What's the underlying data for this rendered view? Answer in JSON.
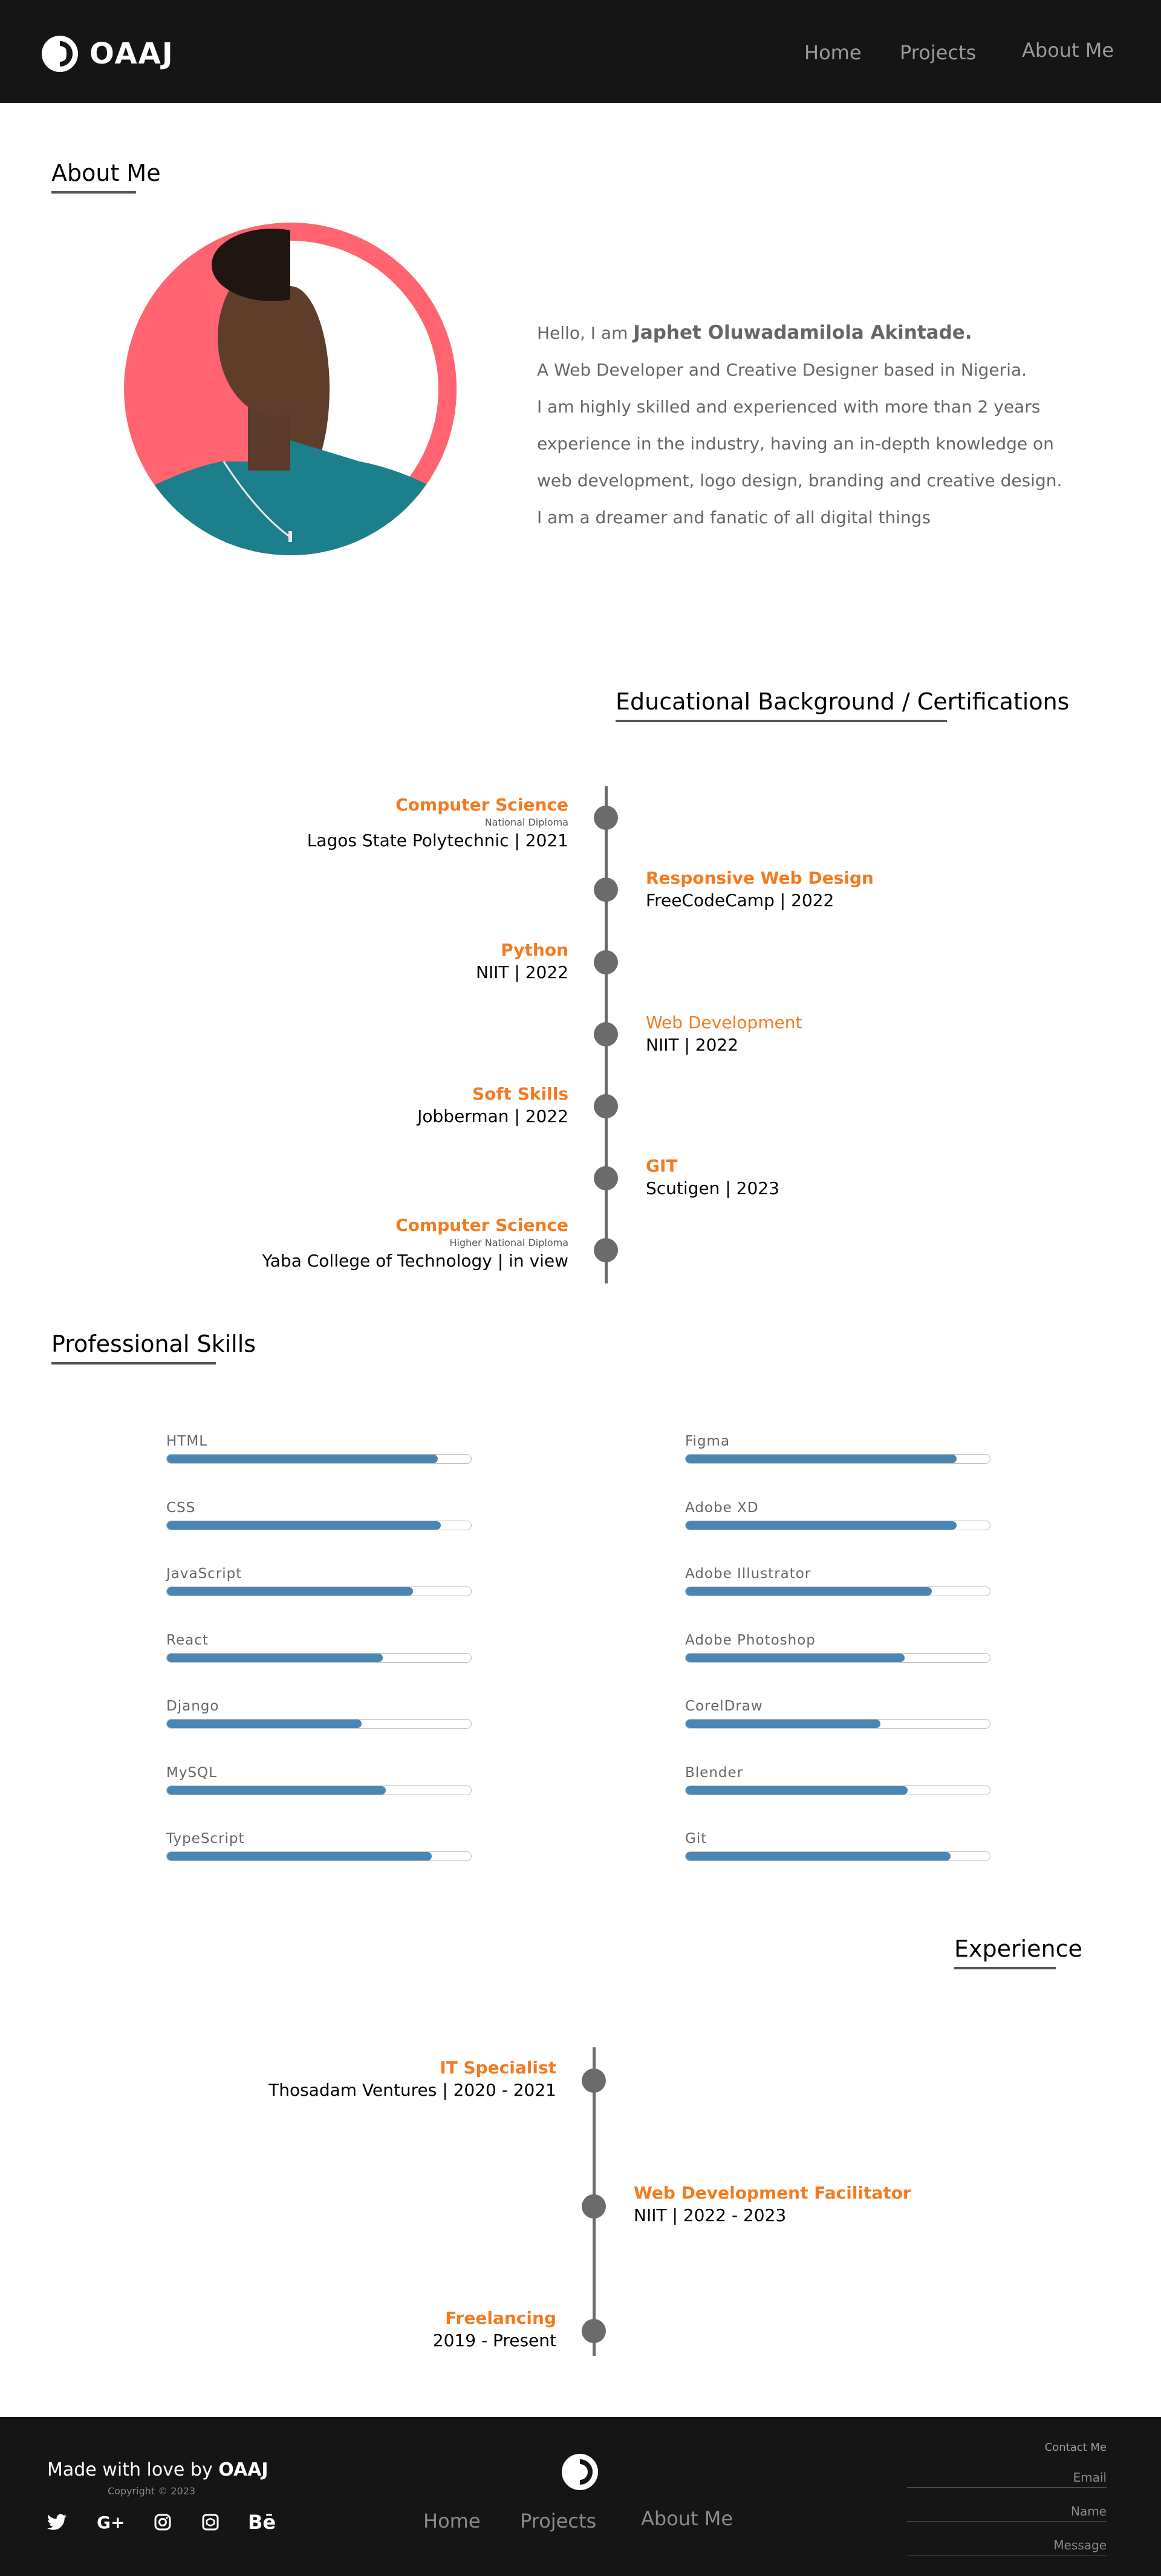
{
  "brand": {
    "name": "OAAJ",
    "accent": "#f47a20",
    "bar": "#4a86b4",
    "dark": "#151515"
  },
  "nav": {
    "home": "Home",
    "projects": "Projects",
    "about": "About Me"
  },
  "about": {
    "heading": "About Me",
    "greeting": "Hello, I am",
    "name": "Japhet Oluwadamilola Akintade.",
    "line1": "A Web Developer and Creative Designer based in Nigeria.",
    "line2": "I am highly skilled and experienced with more than 2 years",
    "line3": "experience in the industry, having an in-depth knowledge on",
    "line4": "web development, logo design, branding and creative design.",
    "line5": " I am a dreamer and fanatic of all digital things"
  },
  "education": {
    "heading": "Educational Background / Certifications",
    "items": [
      {
        "title": "Computer Science",
        "sub": "National Diploma",
        "meta": "Lagos State Polytechnic | 2021"
      },
      {
        "title": "Responsive Web Design",
        "meta": "FreeCodeCamp | 2022"
      },
      {
        "title": "Python",
        "meta": "NIIT | 2022"
      },
      {
        "title": "Web Development",
        "meta": "NIIT | 2022"
      },
      {
        "title": "Soft Skills",
        "meta": "Jobberman | 2022"
      },
      {
        "title": "GIT",
        "meta": "Scutigen | 2023"
      },
      {
        "title": "Computer Science",
        "sub": "Higher National Diploma",
        "meta": "Yaba College of Technology | in view"
      }
    ]
  },
  "skills": {
    "heading": "Professional Skills",
    "left": [
      {
        "name": "HTML",
        "level": 0.89
      },
      {
        "name": "CSS",
        "level": 0.9
      },
      {
        "name": "JavaScript",
        "level": 0.81
      },
      {
        "name": "React",
        "level": 0.71
      },
      {
        "name": "Django",
        "level": 0.64
      },
      {
        "name": "MySQL",
        "level": 0.72
      },
      {
        "name": "TypeScript",
        "level": 0.87
      }
    ],
    "right": [
      {
        "name": "Figma",
        "level": 0.89
      },
      {
        "name": "Adobe XD",
        "level": 0.89
      },
      {
        "name": "Adobe Illustrator",
        "level": 0.81
      },
      {
        "name": "Adobe Photoshop",
        "level": 0.72
      },
      {
        "name": "CorelDraw",
        "level": 0.64
      },
      {
        "name": "Blender",
        "level": 0.73
      },
      {
        "name": "Git",
        "level": 0.87
      }
    ]
  },
  "experience": {
    "heading": "Experience",
    "items": [
      {
        "title": "IT Specialist",
        "meta": "Thosadam Ventures | 2020 - 2021"
      },
      {
        "title": "Web Development Facilitator",
        "meta": "NIIT | 2022 - 2023"
      },
      {
        "title": "Freelancing",
        "meta": "2019 - Present"
      }
    ]
  },
  "footer": {
    "made": "Made with love by",
    "brand": "OAAJ",
    "copyright": "Copyright © 2023",
    "social": [
      "twitter-icon",
      "google-plus-icon",
      "instagram-icon",
      "codepen-icon",
      "behance-icon"
    ],
    "social_glyphs": {
      "google": "G+",
      "behance": "Bē"
    },
    "nav": {
      "home": "Home",
      "projects": "Projects",
      "about": "About Me"
    },
    "contact": {
      "title": "Contact Me",
      "email": "Email",
      "name": "Name",
      "message": "Message"
    }
  }
}
